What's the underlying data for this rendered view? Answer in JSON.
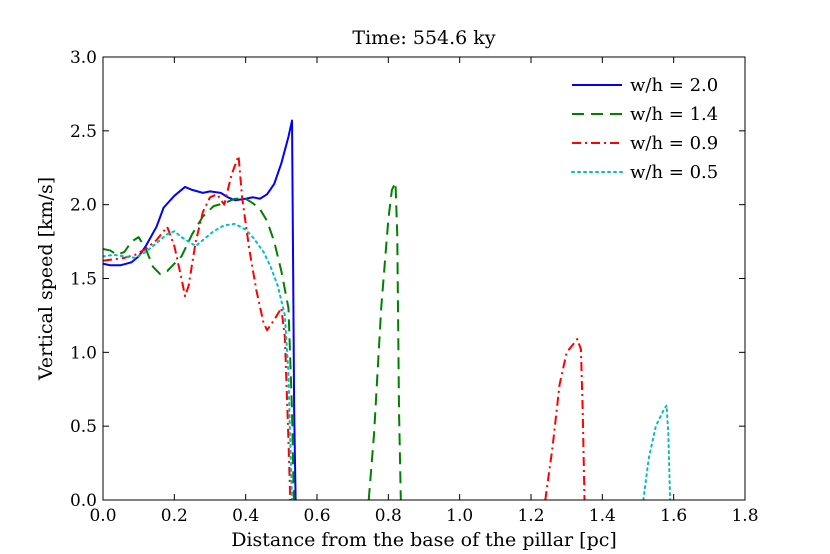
{
  "chart_data": {
    "type": "line",
    "title": "Time: 554.6 ky",
    "xlabel": "Distance from the base of the pillar [pc]",
    "ylabel": "Vertical speed [km/s]",
    "xlim": [
      0.0,
      1.8
    ],
    "ylim": [
      0.0,
      3.0
    ],
    "xticks": [
      "0.0",
      "0.2",
      "0.4",
      "0.6",
      "0.8",
      "1.0",
      "1.2",
      "1.4",
      "1.6",
      "1.8"
    ],
    "yticks": [
      "0.0",
      "0.5",
      "1.0",
      "1.5",
      "2.0",
      "2.5",
      "3.0"
    ],
    "legend_position": "top-right",
    "series": [
      {
        "name": "w/h = 2.0",
        "color": "#0000ff",
        "style": "solid",
        "segments": [
          [
            [
              0.0,
              1.6
            ],
            [
              0.02,
              1.59
            ],
            [
              0.05,
              1.59
            ],
            [
              0.08,
              1.61
            ],
            [
              0.1,
              1.65
            ],
            [
              0.12,
              1.72
            ],
            [
              0.15,
              1.85
            ],
            [
              0.17,
              1.98
            ],
            [
              0.2,
              2.06
            ],
            [
              0.23,
              2.12
            ],
            [
              0.25,
              2.1
            ],
            [
              0.28,
              2.08
            ],
            [
              0.3,
              2.09
            ],
            [
              0.33,
              2.08
            ],
            [
              0.35,
              2.05
            ],
            [
              0.37,
              2.03
            ],
            [
              0.4,
              2.04
            ],
            [
              0.42,
              2.05
            ],
            [
              0.44,
              2.04
            ],
            [
              0.46,
              2.07
            ],
            [
              0.48,
              2.14
            ],
            [
              0.5,
              2.28
            ],
            [
              0.52,
              2.46
            ],
            [
              0.53,
              2.57
            ],
            [
              0.533,
              1.6
            ],
            [
              0.536,
              0.6
            ],
            [
              0.54,
              0.0
            ]
          ]
        ]
      },
      {
        "name": "w/h = 1.4",
        "color": "#008000",
        "style": "dashed",
        "segments": [
          [
            [
              0.0,
              1.7
            ],
            [
              0.02,
              1.69
            ],
            [
              0.04,
              1.66
            ],
            [
              0.06,
              1.68
            ],
            [
              0.08,
              1.75
            ],
            [
              0.1,
              1.78
            ],
            [
              0.12,
              1.7
            ],
            [
              0.14,
              1.58
            ],
            [
              0.16,
              1.53
            ],
            [
              0.18,
              1.55
            ],
            [
              0.2,
              1.6
            ],
            [
              0.22,
              1.65
            ],
            [
              0.25,
              1.8
            ],
            [
              0.28,
              1.92
            ],
            [
              0.31,
              1.99
            ],
            [
              0.34,
              2.01
            ],
            [
              0.37,
              2.04
            ],
            [
              0.4,
              2.04
            ],
            [
              0.42,
              2.01
            ],
            [
              0.44,
              1.97
            ],
            [
              0.46,
              1.89
            ],
            [
              0.48,
              1.75
            ],
            [
              0.5,
              1.55
            ],
            [
              0.52,
              1.3
            ],
            [
              0.53,
              0.6
            ],
            [
              0.535,
              0.0
            ]
          ],
          [
            [
              0.745,
              0.0
            ],
            [
              0.76,
              0.45
            ],
            [
              0.78,
              1.3
            ],
            [
              0.8,
              1.9
            ],
            [
              0.81,
              2.1
            ],
            [
              0.82,
              2.15
            ],
            [
              0.825,
              1.8
            ],
            [
              0.83,
              0.6
            ],
            [
              0.835,
              0.0
            ]
          ]
        ]
      },
      {
        "name": "w/h = 0.9",
        "color": "#ff0000",
        "style": "dashdot",
        "segments": [
          [
            [
              0.0,
              1.62
            ],
            [
              0.03,
              1.63
            ],
            [
              0.06,
              1.64
            ],
            [
              0.09,
              1.66
            ],
            [
              0.12,
              1.7
            ],
            [
              0.15,
              1.76
            ],
            [
              0.18,
              1.85
            ],
            [
              0.2,
              1.72
            ],
            [
              0.22,
              1.5
            ],
            [
              0.23,
              1.38
            ],
            [
              0.24,
              1.45
            ],
            [
              0.26,
              1.75
            ],
            [
              0.28,
              1.95
            ],
            [
              0.3,
              2.05
            ],
            [
              0.32,
              2.07
            ],
            [
              0.34,
              2.0
            ],
            [
              0.36,
              2.2
            ],
            [
              0.38,
              2.33
            ],
            [
              0.39,
              2.05
            ],
            [
              0.41,
              1.7
            ],
            [
              0.43,
              1.42
            ],
            [
              0.45,
              1.2
            ],
            [
              0.46,
              1.15
            ],
            [
              0.48,
              1.22
            ],
            [
              0.5,
              1.3
            ],
            [
              0.51,
              1.1
            ],
            [
              0.52,
              0.4
            ],
            [
              0.525,
              0.0
            ]
          ],
          [
            [
              1.24,
              0.0
            ],
            [
              1.26,
              0.35
            ],
            [
              1.28,
              0.78
            ],
            [
              1.3,
              1.0
            ],
            [
              1.32,
              1.06
            ],
            [
              1.33,
              1.09
            ],
            [
              1.34,
              1.02
            ],
            [
              1.345,
              0.6
            ],
            [
              1.35,
              0.0
            ]
          ]
        ]
      },
      {
        "name": "w/h = 0.5",
        "color": "#00bfbf",
        "style": "dotted",
        "segments": [
          [
            [
              0.0,
              1.65
            ],
            [
              0.03,
              1.66
            ],
            [
              0.06,
              1.65
            ],
            [
              0.09,
              1.64
            ],
            [
              0.12,
              1.68
            ],
            [
              0.15,
              1.74
            ],
            [
              0.18,
              1.8
            ],
            [
              0.2,
              1.82
            ],
            [
              0.22,
              1.78
            ],
            [
              0.24,
              1.75
            ],
            [
              0.26,
              1.72
            ],
            [
              0.28,
              1.76
            ],
            [
              0.31,
              1.82
            ],
            [
              0.34,
              1.86
            ],
            [
              0.37,
              1.87
            ],
            [
              0.4,
              1.83
            ],
            [
              0.42,
              1.78
            ],
            [
              0.45,
              1.68
            ],
            [
              0.47,
              1.58
            ],
            [
              0.49,
              1.45
            ],
            [
              0.51,
              1.25
            ],
            [
              0.52,
              0.85
            ],
            [
              0.525,
              0.4
            ],
            [
              0.53,
              0.0
            ]
          ],
          [
            [
              1.515,
              0.0
            ],
            [
              1.53,
              0.28
            ],
            [
              1.55,
              0.5
            ],
            [
              1.57,
              0.6
            ],
            [
              1.58,
              0.64
            ],
            [
              1.585,
              0.45
            ],
            [
              1.59,
              0.0
            ]
          ]
        ]
      }
    ]
  }
}
